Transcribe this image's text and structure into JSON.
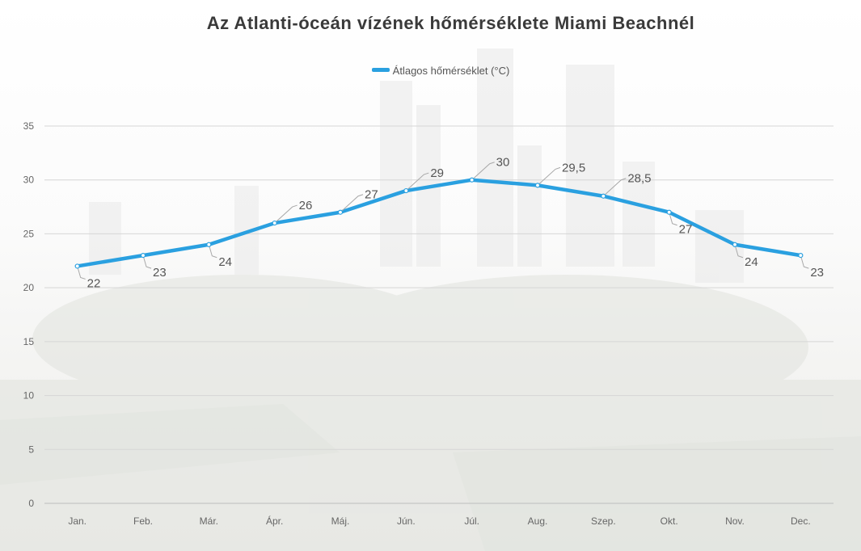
{
  "chart_data": {
    "type": "line",
    "title": "Az Atlanti-óceán vízének hőmérséklete Miami Beachnél",
    "categories": [
      "Jan.",
      "Feb.",
      "Már.",
      "Ápr.",
      "Máj.",
      "Jún.",
      "Júl.",
      "Aug.",
      "Szep.",
      "Okt.",
      "Nov.",
      "Dec."
    ],
    "series": [
      {
        "name": "Átlagos hőmérséklet (°C)",
        "values": [
          22,
          23,
          24,
          26,
          27,
          29,
          30,
          29.5,
          28.5,
          27,
          24,
          23
        ],
        "labels": [
          "22",
          "23",
          "24",
          "26",
          "27",
          "29",
          "30",
          "29,5",
          "28,5",
          "27",
          "24",
          "23"
        ],
        "color": "#2aa0e0"
      }
    ],
    "ylim": [
      0,
      35
    ],
    "yticks": [
      "0",
      "5",
      "10",
      "15",
      "20",
      "25",
      "30",
      "35"
    ],
    "grid": true,
    "legend_position": "top"
  }
}
